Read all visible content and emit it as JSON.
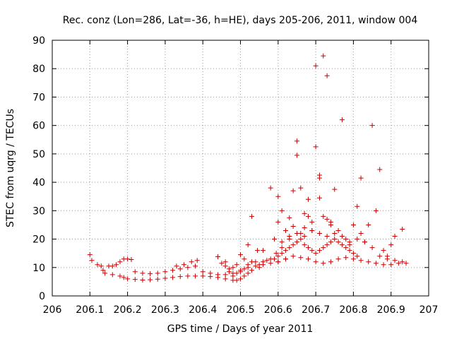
{
  "chart_data": {
    "type": "scatter",
    "title": "Rec. conz (Lon=286, Lat=-36, h=HE), days 205-206, 2011, window 004",
    "xlabel": "GPS time / Days of year 2011",
    "ylabel": "STEC from uqrg / TECUs",
    "xlim": [
      206,
      207
    ],
    "ylim": [
      0,
      90
    ],
    "xticks": [
      206,
      206.1,
      206.2,
      206.3,
      206.4,
      206.5,
      206.6,
      206.7,
      206.8,
      206.9,
      207
    ],
    "xtick_labels": [
      "206",
      "206.1",
      "206.2",
      "206.3",
      "206.4",
      "206.5",
      "206.6",
      "206.7",
      "206.8",
      "206.9",
      "207"
    ],
    "yticks": [
      0,
      10,
      20,
      30,
      40,
      50,
      60,
      70,
      80,
      90
    ],
    "ytick_labels": [
      "0",
      "10",
      "20",
      "30",
      "40",
      "50",
      "60",
      "70",
      "80",
      "90"
    ],
    "grid": true,
    "marker": "plus",
    "color": "#cc0000",
    "points": [
      [
        206.1,
        14.5
      ],
      [
        206.105,
        12.5
      ],
      [
        206.12,
        11
      ],
      [
        206.13,
        10.5
      ],
      [
        206.135,
        9
      ],
      [
        206.15,
        10.5
      ],
      [
        206.16,
        10.5
      ],
      [
        206.17,
        11
      ],
      [
        206.18,
        12
      ],
      [
        206.19,
        13
      ],
      [
        206.2,
        13
      ],
      [
        206.21,
        12.8
      ],
      [
        206.14,
        8
      ],
      [
        206.16,
        7.5
      ],
      [
        206.18,
        7
      ],
      [
        206.19,
        6.5
      ],
      [
        206.2,
        6
      ],
      [
        206.22,
        5.8
      ],
      [
        206.24,
        5.6
      ],
      [
        206.26,
        5.7
      ],
      [
        206.28,
        5.9
      ],
      [
        206.3,
        6.2
      ],
      [
        206.32,
        6.5
      ],
      [
        206.34,
        6.8
      ],
      [
        206.36,
        7
      ],
      [
        206.38,
        7
      ],
      [
        206.4,
        7
      ],
      [
        206.42,
        6.8
      ],
      [
        206.44,
        6.5
      ],
      [
        206.46,
        6
      ],
      [
        206.48,
        5.5
      ],
      [
        206.49,
        5.5
      ],
      [
        206.5,
        6
      ],
      [
        206.51,
        7
      ],
      [
        206.52,
        8
      ],
      [
        206.53,
        9
      ],
      [
        206.55,
        10
      ],
      [
        206.22,
        8.5
      ],
      [
        206.24,
        8
      ],
      [
        206.26,
        7.8
      ],
      [
        206.28,
        8
      ],
      [
        206.3,
        8.5
      ],
      [
        206.32,
        9
      ],
      [
        206.34,
        9.5
      ],
      [
        206.36,
        10
      ],
      [
        206.38,
        10.5
      ],
      [
        206.4,
        8.5
      ],
      [
        206.42,
        8
      ],
      [
        206.44,
        7.5
      ],
      [
        206.46,
        7.5
      ],
      [
        206.48,
        8
      ],
      [
        206.5,
        9
      ],
      [
        206.52,
        10
      ],
      [
        206.54,
        10.5
      ],
      [
        206.56,
        11
      ],
      [
        206.58,
        11.5
      ],
      [
        206.6,
        12
      ],
      [
        206.33,
        10.5
      ],
      [
        206.35,
        11
      ],
      [
        206.37,
        12
      ],
      [
        206.385,
        12.5
      ],
      [
        206.44,
        13.8
      ],
      [
        206.46,
        12
      ],
      [
        206.47,
        9.5
      ],
      [
        206.48,
        10
      ],
      [
        206.49,
        11
      ],
      [
        206.5,
        14.5
      ],
      [
        206.51,
        13
      ],
      [
        206.52,
        18
      ],
      [
        206.53,
        28
      ],
      [
        206.545,
        16
      ],
      [
        206.56,
        16
      ],
      [
        206.45,
        11.5
      ],
      [
        206.46,
        10.5
      ],
      [
        206.47,
        8.5
      ],
      [
        206.48,
        7
      ],
      [
        206.49,
        8
      ],
      [
        206.5,
        8.5
      ],
      [
        206.51,
        9.5
      ],
      [
        206.52,
        11
      ],
      [
        206.53,
        12
      ],
      [
        206.54,
        12
      ],
      [
        206.55,
        11
      ],
      [
        206.56,
        12
      ],
      [
        206.57,
        12.5
      ],
      [
        206.58,
        13
      ],
      [
        206.58,
        38
      ],
      [
        206.59,
        20
      ],
      [
        206.595,
        15
      ],
      [
        206.6,
        35
      ],
      [
        206.6,
        26
      ],
      [
        206.61,
        17
      ],
      [
        206.61,
        30
      ],
      [
        206.62,
        23
      ],
      [
        206.62,
        13
      ],
      [
        206.63,
        27.5
      ],
      [
        206.63,
        21
      ],
      [
        206.64,
        37
      ],
      [
        206.64,
        24.5
      ],
      [
        206.65,
        54.5
      ],
      [
        206.65,
        49.5
      ],
      [
        206.66,
        38
      ],
      [
        206.66,
        22
      ],
      [
        206.67,
        29
      ],
      [
        206.67,
        24
      ],
      [
        206.68,
        34
      ],
      [
        206.68,
        28
      ],
      [
        206.69,
        23
      ],
      [
        206.69,
        26
      ],
      [
        206.7,
        81
      ],
      [
        206.7,
        52.5
      ],
      [
        206.71,
        42.5
      ],
      [
        206.71,
        41.5
      ],
      [
        206.71,
        34.5
      ],
      [
        206.72,
        84.5
      ],
      [
        206.72,
        28
      ],
      [
        206.73,
        77.5
      ],
      [
        206.73,
        27
      ],
      [
        206.74,
        26
      ],
      [
        206.74,
        25
      ],
      [
        206.75,
        37.5
      ],
      [
        206.76,
        23
      ],
      [
        206.77,
        62
      ],
      [
        206.78,
        20
      ],
      [
        206.79,
        18
      ],
      [
        206.8,
        25
      ],
      [
        206.81,
        31.5
      ],
      [
        206.82,
        41.5
      ],
      [
        206.82,
        22
      ],
      [
        206.83,
        19
      ],
      [
        206.84,
        25
      ],
      [
        206.85,
        60
      ],
      [
        206.86,
        30
      ],
      [
        206.87,
        44.5
      ],
      [
        206.88,
        16
      ],
      [
        206.89,
        14
      ],
      [
        206.9,
        18
      ],
      [
        206.91,
        21
      ],
      [
        206.93,
        23.5
      ],
      [
        206.59,
        13
      ],
      [
        206.6,
        14
      ],
      [
        206.61,
        15
      ],
      [
        206.62,
        16
      ],
      [
        206.63,
        17
      ],
      [
        206.64,
        18
      ],
      [
        206.65,
        19
      ],
      [
        206.66,
        20
      ],
      [
        206.67,
        18
      ],
      [
        206.68,
        17
      ],
      [
        206.69,
        16
      ],
      [
        206.7,
        15
      ],
      [
        206.71,
        16
      ],
      [
        206.72,
        17
      ],
      [
        206.73,
        18
      ],
      [
        206.74,
        19
      ],
      [
        206.75,
        20
      ],
      [
        206.76,
        19
      ],
      [
        206.77,
        18
      ],
      [
        206.78,
        17
      ],
      [
        206.79,
        16
      ],
      [
        206.8,
        15
      ],
      [
        206.81,
        14
      ],
      [
        206.6,
        12
      ],
      [
        206.62,
        13
      ],
      [
        206.64,
        14
      ],
      [
        206.66,
        13.5
      ],
      [
        206.68,
        13
      ],
      [
        206.7,
        12
      ],
      [
        206.72,
        11.5
      ],
      [
        206.74,
        12
      ],
      [
        206.76,
        13
      ],
      [
        206.78,
        13.5
      ],
      [
        206.8,
        13
      ],
      [
        206.82,
        12.5
      ],
      [
        206.84,
        12
      ],
      [
        206.86,
        11.5
      ],
      [
        206.88,
        11
      ],
      [
        206.9,
        11
      ],
      [
        206.92,
        11.5
      ],
      [
        206.94,
        11.5
      ],
      [
        206.61,
        19
      ],
      [
        206.63,
        20
      ],
      [
        206.65,
        22
      ],
      [
        206.67,
        21
      ],
      [
        206.69,
        23
      ],
      [
        206.71,
        22
      ],
      [
        206.73,
        21
      ],
      [
        206.75,
        22
      ],
      [
        206.77,
        21
      ],
      [
        206.79,
        19
      ],
      [
        206.81,
        20
      ],
      [
        206.83,
        19
      ],
      [
        206.85,
        17
      ],
      [
        206.87,
        14
      ],
      [
        206.89,
        13
      ],
      [
        206.91,
        12.5
      ],
      [
        206.93,
        12
      ]
    ]
  }
}
